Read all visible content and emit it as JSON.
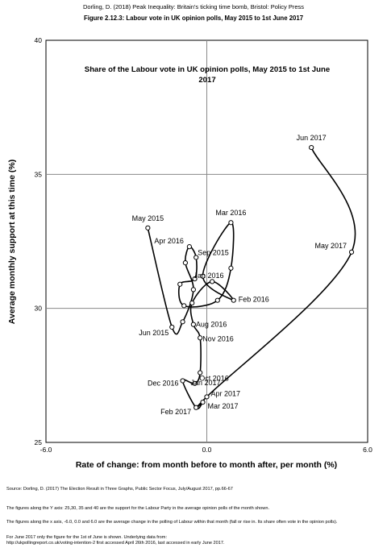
{
  "header": {
    "citation": "Dorling, D. (2018) Peak Inequality: Britain's ticking time bomb, Bristol: Policy Press",
    "figure_title": "Figure 2.12.3: Labour vote in UK opinion polls, May 2015 to 1st June 2017"
  },
  "footer": {
    "source": "Source: Dorling, D. (2017) The Election Result in Three Graphs, Public Sector Focus, July/August 2017, pp.66-67",
    "note_y": "The figures along the Y axis: 25,30, 35 and 40 are the support for the Labour Party in the average opinion polls of the month shown.",
    "note_x": "The figures along the x axis, -6.0, 0.0 and 6.0 are the average change in the polling of Labour within that month (fall or rise in. Its share often vote in the opinion polls).",
    "note_june_1": "For June 2017 only the figure for the 1st of June is shown. Underlying data from:",
    "note_june_2": "http://ukpollingreport.co.uk/voting-intention-2 first accessed April 26th 2016, last accessed in early June 2017."
  },
  "chart_data": {
    "type": "scatter",
    "title_line1": "Share of the Labour vote in UK opinion polls, May 2015 to 1st June",
    "title_line2": "2017",
    "xlabel": "Rate of change: from month before to  month after, per month (%)",
    "ylabel": "Average monthly support at this time (%)",
    "xlim": [
      -6.0,
      6.0
    ],
    "ylim": [
      25,
      40
    ],
    "x_ticks": [
      -6.0,
      0.0,
      6.0
    ],
    "x_tick_labels": [
      "-6.0",
      "0.0",
      "6.0"
    ],
    "y_ticks": [
      25,
      30,
      35,
      40
    ],
    "y_tick_labels": [
      "25",
      "30",
      "35",
      "40"
    ],
    "grid": true,
    "points": [
      {
        "label": "May 2015",
        "x": -2.2,
        "y": 33.0
      },
      {
        "label": "Jun 2015",
        "x": -1.3,
        "y": 29.3
      },
      {
        "label": "",
        "x": -0.9,
        "y": 29.5
      },
      {
        "label": "",
        "x": -0.5,
        "y": 30.7
      },
      {
        "label": "",
        "x": -0.8,
        "y": 31.7
      },
      {
        "label": "Apr 2016",
        "x": -0.65,
        "y": 32.3
      },
      {
        "label": "Sep 2015",
        "x": -0.4,
        "y": 31.9
      },
      {
        "label": "Jan 2016",
        "x": -0.45,
        "y": 31.1
      },
      {
        "label": "",
        "x": -1.0,
        "y": 30.9
      },
      {
        "label": "",
        "x": -0.85,
        "y": 30.1
      },
      {
        "label": "",
        "x": 0.4,
        "y": 30.3
      },
      {
        "label": "",
        "x": 0.9,
        "y": 31.5
      },
      {
        "label": "Mar 2016",
        "x": 0.9,
        "y": 33.2
      },
      {
        "label": "",
        "x": -0.15,
        "y": 31.2
      },
      {
        "label": "Feb 2016",
        "x": 1.0,
        "y": 30.3
      },
      {
        "label": "",
        "x": 0.2,
        "y": 31.0
      },
      {
        "label": "",
        "x": -0.55,
        "y": 30.2
      },
      {
        "label": "Aug 2016",
        "x": -0.5,
        "y": 29.4
      },
      {
        "label": "Nov 2016",
        "x": -0.25,
        "y": 28.9
      },
      {
        "label": "Oct 2016",
        "x": -0.25,
        "y": 27.6
      },
      {
        "label": "Jan 2017",
        "x": -0.45,
        "y": 27.2
      },
      {
        "label": "Dec 2016",
        "x": -0.9,
        "y": 27.3
      },
      {
        "label": "Feb 2017",
        "x": -0.4,
        "y": 26.3
      },
      {
        "label": "Mar 2017",
        "x": -0.15,
        "y": 26.5
      },
      {
        "label": "Apr 2017",
        "x": 0.0,
        "y": 26.7
      },
      {
        "label": "May 2017",
        "x": 5.4,
        "y": 32.1
      },
      {
        "label": "Jun 2017",
        "x": 3.9,
        "y": 36.0
      }
    ]
  }
}
